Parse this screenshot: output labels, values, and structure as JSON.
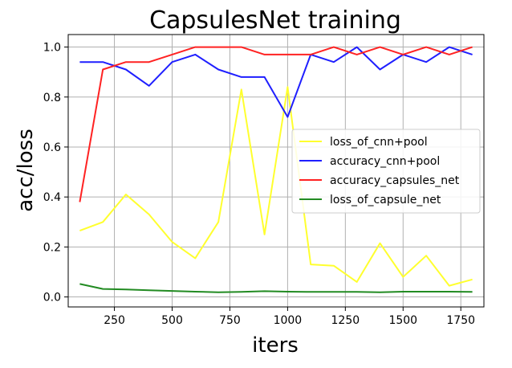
{
  "chart_data": {
    "type": "line",
    "title": "CapsulesNet training",
    "xlabel": "iters",
    "ylabel": "acc/loss",
    "xlim": [
      50,
      1850
    ],
    "ylim": [
      -0.04,
      1.05
    ],
    "xticks": [
      250,
      500,
      750,
      1000,
      1250,
      1500,
      1750
    ],
    "yticks": [
      0.0,
      0.2,
      0.4,
      0.6,
      0.8,
      1.0
    ],
    "grid": true,
    "legend_position": "center-right",
    "x": [
      100,
      200,
      300,
      400,
      500,
      600,
      700,
      800,
      900,
      1000,
      1100,
      1200,
      1300,
      1400,
      1500,
      1600,
      1700,
      1800
    ],
    "series": [
      {
        "name": "loss_of_cnn+pool",
        "color": "#ffff2e",
        "values": [
          0.265,
          0.3,
          0.41,
          0.33,
          0.22,
          0.155,
          0.3,
          0.83,
          0.25,
          0.84,
          0.13,
          0.125,
          0.06,
          0.215,
          0.08,
          0.165,
          0.045,
          0.07
        ]
      },
      {
        "name": "accuracy_cnn+pool",
        "color": "#1f1fff",
        "values": [
          0.94,
          0.94,
          0.91,
          0.845,
          0.94,
          0.97,
          0.91,
          0.88,
          0.88,
          0.72,
          0.97,
          0.94,
          1.0,
          0.91,
          0.97,
          0.94,
          1.0,
          0.97
        ]
      },
      {
        "name": "accuracy_capsules_net",
        "color": "#ff2222",
        "values": [
          0.38,
          0.91,
          0.94,
          0.94,
          0.97,
          1.0,
          1.0,
          1.0,
          0.97,
          0.97,
          0.97,
          1.0,
          0.97,
          1.0,
          0.97,
          1.0,
          0.97,
          1.0
        ]
      },
      {
        "name": "loss_of_capsule_net",
        "color": "#228b22",
        "values": [
          0.052,
          0.032,
          0.03,
          0.027,
          0.024,
          0.021,
          0.019,
          0.02,
          0.023,
          0.021,
          0.02,
          0.02,
          0.02,
          0.019,
          0.021,
          0.021,
          0.021,
          0.02
        ]
      }
    ]
  }
}
